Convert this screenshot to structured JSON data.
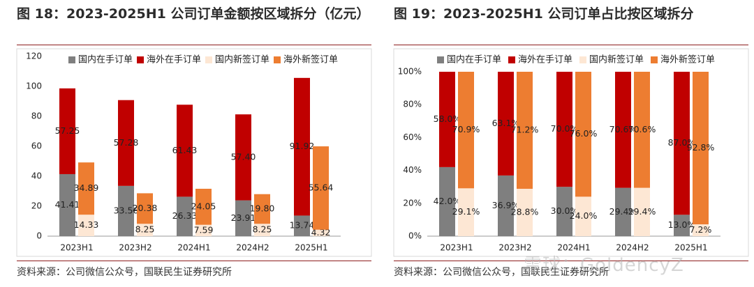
{
  "colors": {
    "domestic_backlog": "#7f7f7f",
    "overseas_backlog": "#c00000",
    "domestic_new": "#fde7d4",
    "overseas_new": "#ed7d31",
    "rule": "#8c1c1c"
  },
  "left": {
    "title": "图 18：2023-2025H1 公司订单金额按区域拆分（亿元）",
    "source": "资料来源：公司微信公众号，国联民生证券研究所"
  },
  "right": {
    "title": "图 19：2023-2025H1 公司订单占比按区域拆分",
    "source": "资料来源：公司微信公众号，国联民生证券研究所"
  },
  "watermark": "雪球：GoldencyZ",
  "chart_data": [
    {
      "type": "bar",
      "stacked": true,
      "title": "图 18：2023-2025H1 公司订单金额按区域拆分（亿元）",
      "categories": [
        "2023H1",
        "2023H2",
        "2024H1",
        "2024H2",
        "2025H1"
      ],
      "ylim": [
        0,
        120
      ],
      "yticks": [
        "0",
        "20",
        "40",
        "60",
        "80",
        "100",
        "120"
      ],
      "series": [
        {
          "name": "国内在手订单",
          "stack": "backlog",
          "values": [
            41.41,
            33.56,
            26.33,
            23.91,
            13.74
          ],
          "labels": [
            "41.41",
            "33.56",
            "26.33",
            "23.91",
            "13.74"
          ]
        },
        {
          "name": "海外在手订单",
          "stack": "backlog",
          "values": [
            57.25,
            57.28,
            61.43,
            57.4,
            91.92
          ],
          "labels": [
            "57.25",
            "57.28",
            "61.43",
            "57.40",
            "91.92"
          ]
        },
        {
          "name": "国内新签订单",
          "stack": "new",
          "values": [
            14.33,
            8.25,
            7.59,
            8.25,
            4.32
          ],
          "labels": [
            "14.33",
            "8.25",
            "7.59",
            "8.25",
            "4.32"
          ]
        },
        {
          "name": "海外新签订单",
          "stack": "new",
          "values": [
            34.89,
            20.38,
            24.05,
            19.8,
            55.64
          ],
          "labels": [
            "34.89",
            "20.38",
            "24.05",
            "19.80",
            "55.64"
          ]
        }
      ]
    },
    {
      "type": "bar",
      "stacked": true,
      "title": "图 19：2023-2025H1 公司订单占比按区域拆分",
      "categories": [
        "2023H1",
        "2023H2",
        "2024H1",
        "2024H2",
        "2025H1"
      ],
      "ylim": [
        0,
        100
      ],
      "yticks": [
        "0%",
        "20%",
        "40%",
        "60%",
        "80%",
        "100%"
      ],
      "series": [
        {
          "name": "国内在手订单",
          "stack": "backlog",
          "values": [
            42.0,
            36.9,
            30.0,
            29.4,
            13.0
          ],
          "labels": [
            "42.0%",
            "36.9%",
            "30.0%",
            "29.4%",
            "13.0%"
          ]
        },
        {
          "name": "海外在手订单",
          "stack": "backlog",
          "values": [
            58.0,
            63.1,
            70.0,
            70.6,
            87.0
          ],
          "labels": [
            "58.0%",
            "63.1%",
            "70.0%",
            "70.6%",
            "87.0%"
          ]
        },
        {
          "name": "国内新签订单",
          "stack": "new",
          "values": [
            29.1,
            28.8,
            24.0,
            29.4,
            7.2
          ],
          "labels": [
            "29.1%",
            "28.8%",
            "24.0%",
            "29.4%",
            "7.2%"
          ]
        },
        {
          "name": "海外新签订单",
          "stack": "new",
          "values": [
            70.9,
            71.2,
            76.0,
            70.6,
            92.8
          ],
          "labels": [
            "70.9%",
            "71.2%",
            "76.0%",
            "70.6%",
            "92.8%"
          ]
        }
      ]
    }
  ]
}
